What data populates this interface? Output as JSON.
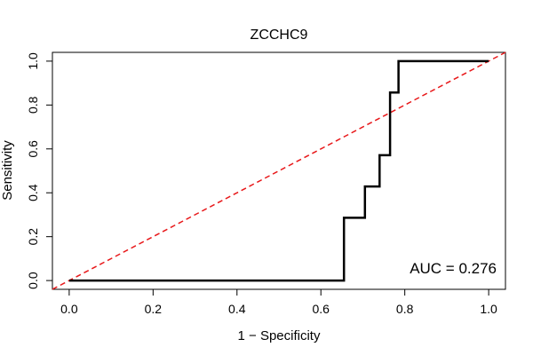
{
  "chart_data": {
    "type": "line",
    "title": "ZCCHC9",
    "xlabel": "1 − Specificity",
    "ylabel": "Sensitivity",
    "xlim": [
      -0.04,
      1.04
    ],
    "ylim": [
      -0.04,
      1.04
    ],
    "x_ticks": [
      0.0,
      0.2,
      0.4,
      0.6,
      0.8,
      1.0
    ],
    "x_tick_labels": [
      "0.0",
      "0.2",
      "0.4",
      "0.6",
      "0.8",
      "1.0"
    ],
    "y_ticks": [
      0.0,
      0.2,
      0.4,
      0.6,
      0.8,
      1.0
    ],
    "y_tick_labels": [
      "0.0",
      "0.2",
      "0.4",
      "0.6",
      "0.8",
      "1.0"
    ],
    "grid": false,
    "series": [
      {
        "color": "#000000",
        "style": "solid",
        "x": [
          0.0,
          0.655,
          0.655,
          0.705,
          0.705,
          0.74,
          0.74,
          0.765,
          0.765,
          0.785,
          0.785,
          1.0
        ],
        "y": [
          0.0,
          0.0,
          0.286,
          0.286,
          0.429,
          0.429,
          0.571,
          0.571,
          0.857,
          0.857,
          1.0,
          1.0
        ]
      }
    ],
    "reference_line": {
      "x": [
        0,
        1
      ],
      "y": [
        0,
        1
      ],
      "color": "#e8181a",
      "style": "dashed"
    },
    "annotation": {
      "text": "AUC = 0.276",
      "placement": "bottom-right"
    }
  }
}
